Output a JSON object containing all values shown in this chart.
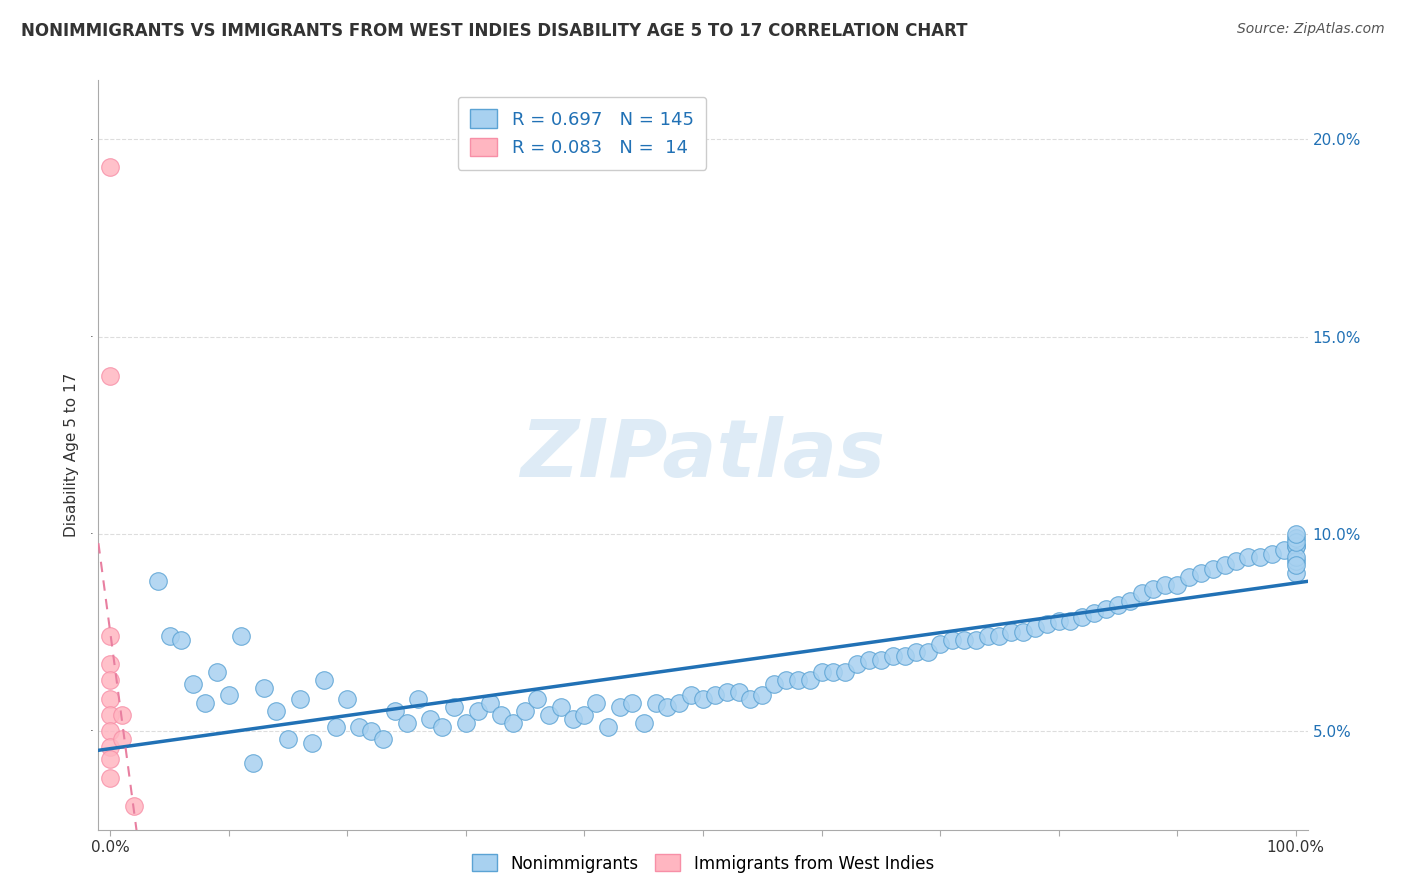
{
  "title": "NONIMMIGRANTS VS IMMIGRANTS FROM WEST INDIES DISABILITY AGE 5 TO 17 CORRELATION CHART",
  "source_text": "Source: ZipAtlas.com",
  "ylabel": "Disability Age 5 to 17",
  "watermark": "ZIPatlas",
  "R_blue": 0.697,
  "N_blue": 145,
  "R_pink": 0.083,
  "N_pink": 14,
  "blue_color": "#a8d1f0",
  "blue_edge": "#5ba3d4",
  "pink_color": "#ffb6c1",
  "pink_edge": "#f78fa7",
  "trend_blue": "#2171b5",
  "trend_pink": "#e87fa0",
  "legend_color": "#2171b5",
  "ylim": [
    0.025,
    0.215
  ],
  "xlim": [
    -1,
    101
  ],
  "blue_scatter_x": [
    4,
    5,
    6,
    7,
    8,
    9,
    10,
    11,
    12,
    13,
    14,
    15,
    16,
    17,
    18,
    19,
    20,
    21,
    22,
    23,
    24,
    25,
    26,
    27,
    28,
    29,
    30,
    31,
    32,
    33,
    34,
    35,
    36,
    37,
    38,
    39,
    40,
    41,
    42,
    43,
    44,
    45,
    46,
    47,
    48,
    49,
    50,
    51,
    52,
    53,
    54,
    55,
    56,
    57,
    58,
    59,
    60,
    61,
    62,
    63,
    64,
    65,
    66,
    67,
    68,
    69,
    70,
    71,
    72,
    73,
    74,
    75,
    76,
    77,
    78,
    79,
    80,
    81,
    82,
    83,
    84,
    85,
    86,
    87,
    88,
    89,
    90,
    91,
    92,
    93,
    94,
    95,
    96,
    97,
    98,
    99,
    100,
    100,
    100,
    100,
    100,
    100,
    100,
    100,
    100
  ],
  "blue_scatter_y": [
    0.088,
    0.074,
    0.073,
    0.062,
    0.057,
    0.065,
    0.059,
    0.074,
    0.042,
    0.061,
    0.055,
    0.048,
    0.058,
    0.047,
    0.063,
    0.051,
    0.058,
    0.051,
    0.05,
    0.048,
    0.055,
    0.052,
    0.058,
    0.053,
    0.051,
    0.056,
    0.052,
    0.055,
    0.057,
    0.054,
    0.052,
    0.055,
    0.058,
    0.054,
    0.056,
    0.053,
    0.054,
    0.057,
    0.051,
    0.056,
    0.057,
    0.052,
    0.057,
    0.056,
    0.057,
    0.059,
    0.058,
    0.059,
    0.06,
    0.06,
    0.058,
    0.059,
    0.062,
    0.063,
    0.063,
    0.063,
    0.065,
    0.065,
    0.065,
    0.067,
    0.068,
    0.068,
    0.069,
    0.069,
    0.07,
    0.07,
    0.072,
    0.073,
    0.073,
    0.073,
    0.074,
    0.074,
    0.075,
    0.075,
    0.076,
    0.077,
    0.078,
    0.078,
    0.079,
    0.08,
    0.081,
    0.082,
    0.083,
    0.085,
    0.086,
    0.087,
    0.087,
    0.089,
    0.09,
    0.091,
    0.092,
    0.093,
    0.094,
    0.094,
    0.095,
    0.096,
    0.097,
    0.097,
    0.099,
    0.09,
    0.093,
    0.094,
    0.098,
    0.1,
    0.092
  ],
  "pink_scatter_x": [
    0,
    0,
    0,
    0,
    0,
    0,
    0,
    0,
    0,
    0,
    0,
    1,
    1,
    2
  ],
  "pink_scatter_y": [
    0.193,
    0.14,
    0.074,
    0.067,
    0.063,
    0.058,
    0.054,
    0.05,
    0.046,
    0.043,
    0.038,
    0.048,
    0.054,
    0.031
  ]
}
